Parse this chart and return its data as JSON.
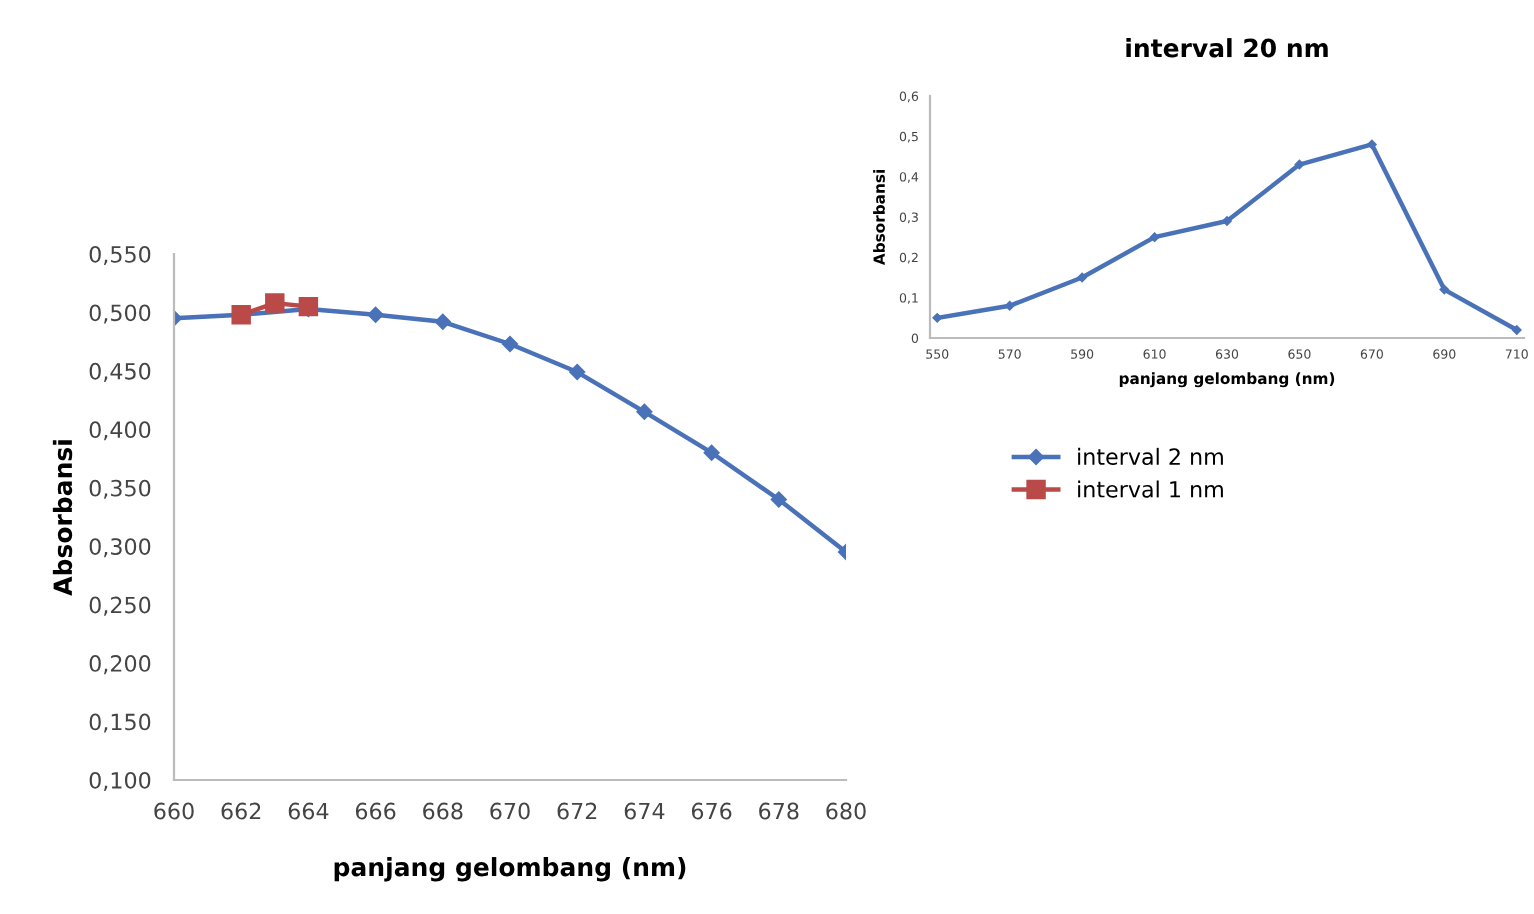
{
  "chart_data": [
    {
      "type": "line",
      "xlabel": "panjang gelombang (nm)",
      "ylabel": "Absorbansi",
      "xlim": [
        660,
        680
      ],
      "xticks": [
        660,
        662,
        664,
        666,
        668,
        670,
        672,
        674,
        676,
        678,
        680
      ],
      "ylim": [
        0.1,
        0.55
      ],
      "yticks": [
        {
          "value": 0.1,
          "label": "0,100"
        },
        {
          "value": 0.15,
          "label": "0,150"
        },
        {
          "value": 0.2,
          "label": "0,200"
        },
        {
          "value": 0.25,
          "label": "0,250"
        },
        {
          "value": 0.3,
          "label": "0,300"
        },
        {
          "value": 0.35,
          "label": "0,350"
        },
        {
          "value": 0.4,
          "label": "0,400"
        },
        {
          "value": 0.45,
          "label": "0,450"
        },
        {
          "value": 0.5,
          "label": "0,500"
        },
        {
          "value": 0.55,
          "label": "0,550"
        }
      ],
      "grid": false,
      "legend": "right",
      "line_style": "solid",
      "series": [
        {
          "name": "interval 2 nm",
          "color": "#4a72b8",
          "marker": "diamond",
          "x": [
            660,
            662,
            664,
            666,
            668,
            670,
            672,
            674,
            676,
            678,
            680
          ],
          "values": [
            0.495,
            0.498,
            0.503,
            0.498,
            0.492,
            0.473,
            0.449,
            0.415,
            0.38,
            0.34,
            0.295
          ]
        },
        {
          "name": "interval 1 nm",
          "color": "#b94a48",
          "marker": "square",
          "x": [
            662,
            663,
            664
          ],
          "values": [
            0.498,
            0.508,
            0.505
          ]
        }
      ]
    },
    {
      "type": "line",
      "title": "interval 20 nm",
      "xlabel": "panjang gelombang (nm)",
      "ylabel": "Absorbansi",
      "categories": [
        "550",
        "570",
        "590",
        "610",
        "630",
        "650",
        "670",
        "690",
        "710"
      ],
      "ylim": [
        0,
        0.6
      ],
      "yticks": [
        0,
        {
          "value": 0.1,
          "label": "0,1"
        },
        {
          "value": 0.2,
          "label": "0,2"
        },
        {
          "value": 0.3,
          "label": "0,3"
        },
        {
          "value": 0.4,
          "label": "0,4"
        },
        {
          "value": 0.5,
          "label": "0,5"
        },
        {
          "value": 0.6,
          "label": "0,6"
        }
      ],
      "grid": false,
      "legend": false,
      "line_style": "solid",
      "series": [
        {
          "color": "#4a72b8",
          "marker": "diamond",
          "values": [
            0.05,
            0.08,
            0.15,
            0.25,
            0.29,
            0.43,
            0.48,
            0.12,
            0.02
          ]
        }
      ]
    }
  ]
}
